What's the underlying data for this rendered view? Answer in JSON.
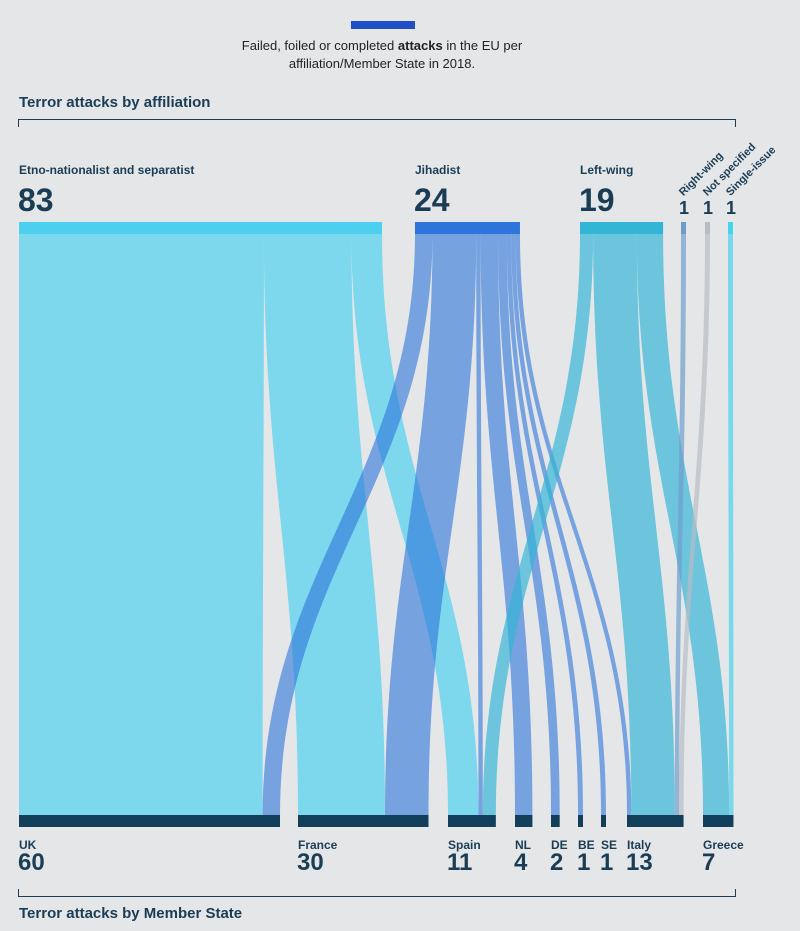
{
  "legend": {
    "prefix": "Failed, foiled or completed ",
    "bold": "attacks",
    "suffix": " in the EU per",
    "line2": "affiliation/Member State in 2018."
  },
  "titles": {
    "top": "Terror attacks by affiliation",
    "bottom": "Terror attacks by Member State"
  },
  "chart_data": {
    "type": "sankey",
    "sources": [
      {
        "name": "Etno-nationalist and separatist",
        "value": 83,
        "color": "#4dd0ef"
      },
      {
        "name": "Jihadist",
        "value": 24,
        "color": "#2d74db"
      },
      {
        "name": "Left-wing",
        "value": 19,
        "color": "#33b6d6"
      },
      {
        "name": "Right-wing",
        "value": 1,
        "color": "#6f9ccc"
      },
      {
        "name": "Not specified",
        "value": 1,
        "color": "#b5bcc2"
      },
      {
        "name": "Single-issue",
        "value": 1,
        "color": "#45d3ef"
      }
    ],
    "targets": [
      {
        "name": "UK",
        "value": 60
      },
      {
        "name": "France",
        "value": 30
      },
      {
        "name": "Spain",
        "value": 11
      },
      {
        "name": "NL",
        "value": 4
      },
      {
        "name": "DE",
        "value": 2
      },
      {
        "name": "BE",
        "value": 1
      },
      {
        "name": "SE",
        "value": 1
      },
      {
        "name": "Italy",
        "value": 13
      },
      {
        "name": "Greece",
        "value": 7
      }
    ],
    "flows": [
      {
        "source": "Etno-nationalist and separatist",
        "target": "UK",
        "value": 56
      },
      {
        "source": "Etno-nationalist and separatist",
        "target": "France",
        "value": 20
      },
      {
        "source": "Etno-nationalist and separatist",
        "target": "Spain",
        "value": 7
      },
      {
        "source": "Jihadist",
        "target": "UK",
        "value": 4
      },
      {
        "source": "Jihadist",
        "target": "France",
        "value": 10
      },
      {
        "source": "Jihadist",
        "target": "Spain",
        "value": 1
      },
      {
        "source": "Jihadist",
        "target": "NL",
        "value": 4
      },
      {
        "source": "Jihadist",
        "target": "DE",
        "value": 2
      },
      {
        "source": "Jihadist",
        "target": "BE",
        "value": 1
      },
      {
        "source": "Jihadist",
        "target": "SE",
        "value": 1
      },
      {
        "source": "Jihadist",
        "target": "Italy",
        "value": 1
      },
      {
        "source": "Left-wing",
        "target": "Spain",
        "value": 3
      },
      {
        "source": "Left-wing",
        "target": "Italy",
        "value": 10
      },
      {
        "source": "Left-wing",
        "target": "Greece",
        "value": 6
      },
      {
        "source": "Right-wing",
        "target": "Italy",
        "value": 1
      },
      {
        "source": "Not specified",
        "target": "Italy",
        "value": 1
      },
      {
        "source": "Single-issue",
        "target": "Greece",
        "value": 1
      }
    ],
    "bar_color_top": "#4dd0ef",
    "bar_color_bottom": "#123f59"
  }
}
